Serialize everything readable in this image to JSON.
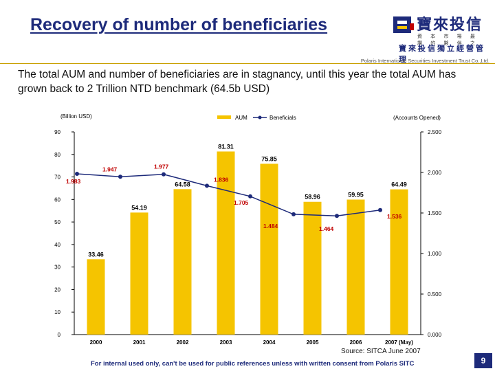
{
  "header": {
    "title": "Recovery of number of beneficiaries",
    "logo_name": "寶來投信",
    "logo_tagline": "資 本 市 場 最 讚 的 夥 伴 之 一",
    "logo_subtitle": "寶來投信獨立經營管理",
    "company": "Polaris International Securities Investment Trust Co.,Ltd.",
    "brand_color": "#1d2a7a"
  },
  "subtitle": "The total AUM and number of beneficiaries are in stagnancy, until this year the total AUM has grown back to 2 Trillion NTD benchmark (64.5b USD)",
  "chart_data": {
    "type": "bar+line",
    "categories": [
      "2000",
      "2001",
      "2002",
      "2003",
      "2004",
      "2005",
      "2006",
      "2007 (May)"
    ],
    "series": [
      {
        "name": "AUM",
        "type": "bar",
        "axis": "left",
        "color": "#f5c400",
        "values": [
          33.46,
          54.19,
          64.58,
          81.31,
          75.85,
          58.96,
          59.95,
          64.49
        ],
        "labels": [
          "33.46",
          "54.19",
          "64.58",
          "81.31",
          "75.85",
          "58.96",
          "59.95",
          "64.49"
        ]
      },
      {
        "name": "Beneficials",
        "type": "line",
        "axis": "right",
        "color": "#1d2a7a",
        "values": [
          1.983,
          1.947,
          1.977,
          1.836,
          1.705,
          1.484,
          1.464,
          1.536
        ],
        "labels": [
          "1.983",
          "1.947",
          "1.977",
          "1.836",
          "1.705",
          "1.484",
          "1.464",
          "1.536"
        ]
      }
    ],
    "y_left": {
      "label": "(Billion USD)",
      "min": 0,
      "max": 90,
      "ticks": [
        "0",
        "10",
        "20",
        "30",
        "40",
        "50",
        "60",
        "70",
        "80",
        "90"
      ]
    },
    "y_right": {
      "label": "(Accounts Opened)",
      "min": 0,
      "max": 2.5,
      "ticks": [
        "0.000",
        "0.500",
        "1.000",
        "1.500",
        "2.000",
        "2.500"
      ]
    },
    "legend": [
      "AUM",
      "Beneficials"
    ],
    "legend_position": "top-center",
    "label_color": "#c00000"
  },
  "source": "Source: SITCA June 2007",
  "footer": "For internal used only, can't be used for public references unless with written consent from Polaris SITC",
  "page_number": "9"
}
